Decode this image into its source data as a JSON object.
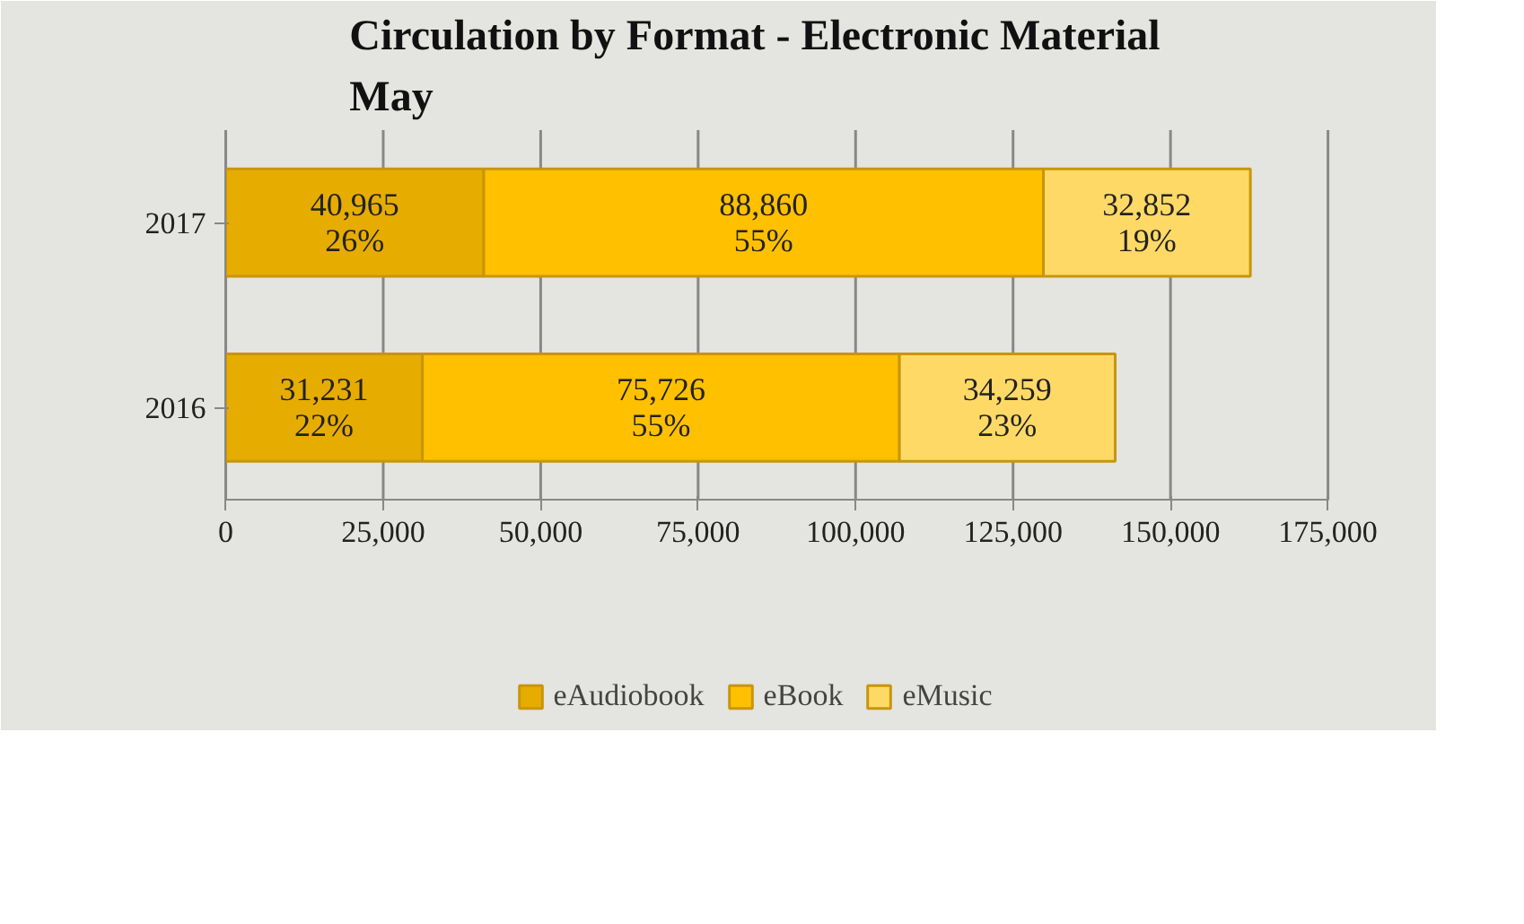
{
  "chart_data": {
    "type": "bar",
    "orientation": "horizontal",
    "stacked": true,
    "title": "Circulation by Format - Electronic Material\nMay",
    "categories": [
      "2017",
      "2016"
    ],
    "series": [
      {
        "name": "eAudiobook",
        "color": "#e6ac00",
        "values": [
          40965,
          31231
        ],
        "value_labels": [
          "40,965\n26%",
          "31,231\n22%"
        ]
      },
      {
        "name": "eBook",
        "color": "#ffc000",
        "values": [
          88860,
          75726
        ],
        "value_labels": [
          "88,860\n55%",
          "75,726\n55%"
        ]
      },
      {
        "name": "eMusic",
        "color": "#ffd966",
        "values": [
          32852,
          34259
        ],
        "value_labels": [
          "32,852\n19%",
          "34,259\n23%"
        ]
      }
    ],
    "xlim": [
      0,
      175000
    ],
    "xticks": [
      0,
      {
        "value": 25000,
        "label": "25,000"
      },
      {
        "value": 50000,
        "label": "50,000"
      },
      {
        "value": 75000,
        "label": "75,000"
      },
      {
        "value": 100000,
        "label": "100,000"
      },
      {
        "value": 125000,
        "label": "125,000"
      },
      {
        "value": 150000,
        "label": "150,000"
      },
      {
        "value": 175000,
        "label": "175,000"
      }
    ],
    "grid": "x",
    "legend": "bottom"
  }
}
